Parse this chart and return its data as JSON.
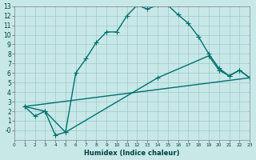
{
  "xlabel": "Humidex (Indice chaleur)",
  "bg_color": "#c8e8e8",
  "line_color": "#007070",
  "xlim": [
    0,
    23
  ],
  "ylim": [
    -1,
    13
  ],
  "yticks": [
    0,
    1,
    2,
    3,
    4,
    5,
    6,
    7,
    8,
    9,
    10,
    11,
    12,
    13
  ],
  "ytick_labels": [
    "-0",
    "1",
    "2",
    "3",
    "4",
    "5",
    "6",
    "7",
    "8",
    "9",
    "10",
    "11",
    "12",
    "13"
  ],
  "xticks": [
    0,
    1,
    2,
    3,
    4,
    5,
    6,
    7,
    8,
    9,
    10,
    11,
    12,
    13,
    14,
    15,
    16,
    17,
    18,
    19,
    20,
    21,
    22,
    23
  ],
  "line1_x": [
    1,
    2,
    3,
    4,
    5,
    6,
    7,
    8,
    9,
    10,
    11,
    12,
    13,
    14,
    15,
    16,
    17,
    18,
    19,
    20,
    21,
    22,
    23
  ],
  "line1_y": [
    2.5,
    1.5,
    2.0,
    -0.5,
    -0.2,
    6.0,
    7.5,
    9.2,
    10.3,
    10.3,
    12.0,
    13.1,
    12.7,
    13.1,
    13.1,
    12.1,
    11.2,
    9.8,
    8.0,
    6.5,
    5.7,
    6.3,
    5.5
  ],
  "line2_x": [
    1,
    3,
    5,
    14,
    19,
    20,
    21,
    22,
    23
  ],
  "line2_y": [
    2.5,
    2.0,
    -0.2,
    5.5,
    7.8,
    6.3,
    5.7,
    6.3,
    5.5
  ],
  "line3_x": [
    1,
    23
  ],
  "line3_y": [
    2.5,
    5.5
  ]
}
